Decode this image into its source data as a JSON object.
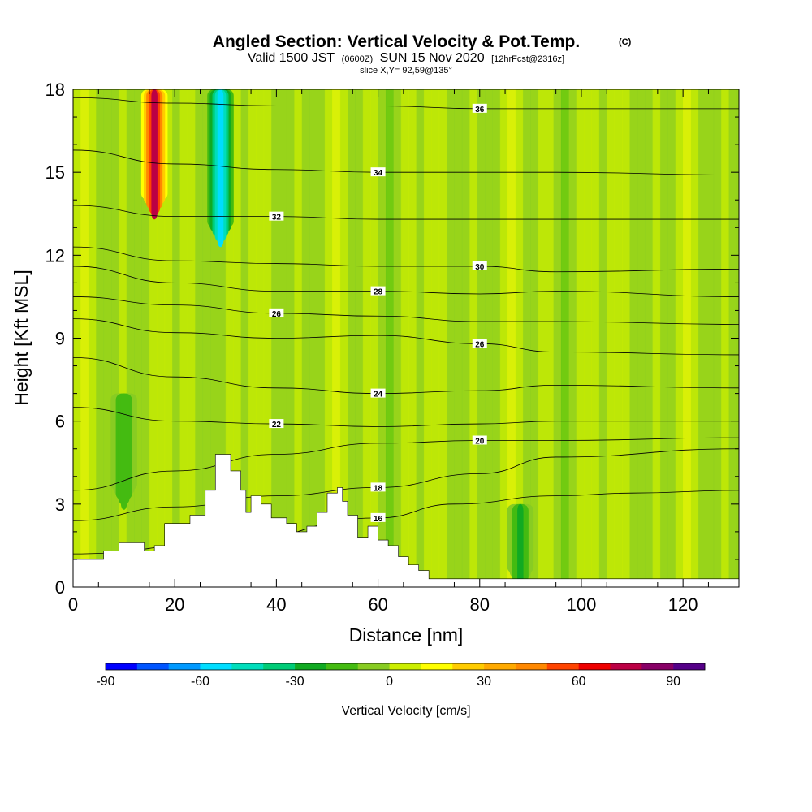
{
  "chart_data": {
    "type": "heatmap",
    "title": "Angled Section: Vertical Velocity & Pot.Temp.",
    "copyright": "(C)",
    "subtitle_main": "Valid 1500 JST",
    "subtitle_utc": "(0600Z)",
    "subtitle_date": "SUN 15 Nov 2020",
    "subtitle_fcst": "[12hrFcst@2316z]",
    "slice_label": "slice X,Y= 92,59@135°",
    "xlabel": "Distance [nm]",
    "ylabel": "Height [Kft MSL]",
    "xlim": [
      0,
      131
    ],
    "ylim": [
      0,
      18
    ],
    "x_ticks": [
      "0",
      "20",
      "40",
      "60",
      "80",
      "100",
      "120"
    ],
    "y_ticks": [
      "0",
      "3",
      "6",
      "9",
      "12",
      "15",
      "18"
    ],
    "colorbar": {
      "label": "Vertical Velocity [cm/s]",
      "min": -90,
      "step": 10,
      "tick_labels": [
        "-90",
        "-60",
        "-30",
        "0",
        "30",
        "60",
        "90"
      ],
      "colors": [
        "#0000ff",
        "#0055ff",
        "#0099ff",
        "#00ddff",
        "#00ddbb",
        "#00cc77",
        "#11aa22",
        "#44bb11",
        "#88cc22",
        "#ccee00",
        "#ffff00",
        "#ffcc00",
        "#ffaa00",
        "#ff8800",
        "#ff4400",
        "#ee0000",
        "#bb0044",
        "#880066",
        "#550088"
      ]
    },
    "updrafts_downdrafts": [
      {
        "x": 16,
        "y_top": 18,
        "y_bottom": 14,
        "value": 70
      },
      {
        "x": 29,
        "y_top": 18,
        "y_bottom": 13,
        "value": -60
      },
      {
        "x": 10,
        "y_top": 7,
        "y_bottom": 3.5,
        "value": -20
      },
      {
        "x": 88,
        "y_top": 3,
        "y_bottom": 0.5,
        "value": -25
      }
    ],
    "theta_contours": [
      {
        "label": "16",
        "values": [
          [
            0,
            1.2
          ],
          [
            30,
            1.6
          ],
          [
            60,
            2.5
          ],
          [
            75,
            3.0
          ],
          [
            95,
            3.3
          ],
          [
            110,
            3.4
          ],
          [
            131,
            3.5
          ]
        ]
      },
      {
        "label": "18",
        "values": [
          [
            0,
            2.4
          ],
          [
            20,
            2.9
          ],
          [
            40,
            3.3
          ],
          [
            60,
            3.6
          ],
          [
            80,
            4.1
          ],
          [
            95,
            4.7
          ],
          [
            131,
            5.0
          ]
        ]
      },
      {
        "label": "20",
        "values": [
          [
            0,
            3.5
          ],
          [
            20,
            4.2
          ],
          [
            40,
            4.8
          ],
          [
            60,
            5.2
          ],
          [
            80,
            5.3
          ],
          [
            95,
            5.3
          ],
          [
            131,
            5.4
          ]
        ]
      },
      {
        "label": "22",
        "values": [
          [
            0,
            6.5
          ],
          [
            20,
            6.0
          ],
          [
            40,
            5.9
          ],
          [
            60,
            5.8
          ],
          [
            80,
            5.9
          ],
          [
            95,
            6.0
          ],
          [
            131,
            6.0
          ]
        ]
      },
      {
        "label": "24",
        "values": [
          [
            0,
            8.3
          ],
          [
            20,
            7.6
          ],
          [
            40,
            7.2
          ],
          [
            60,
            7.0
          ],
          [
            80,
            7.1
          ],
          [
            95,
            7.3
          ],
          [
            131,
            7.2
          ]
        ]
      },
      {
        "label": "26",
        "values": [
          [
            0,
            9.7
          ],
          [
            20,
            9.2
          ],
          [
            40,
            9.0
          ],
          [
            60,
            9.1
          ],
          [
            80,
            8.8
          ],
          [
            95,
            8.5
          ],
          [
            131,
            8.4
          ]
        ]
      },
      {
        "label": "26",
        "values": [
          [
            0,
            10.5
          ],
          [
            20,
            10.2
          ],
          [
            40,
            9.9
          ],
          [
            60,
            9.8
          ],
          [
            80,
            9.6
          ],
          [
            95,
            9.6
          ],
          [
            131,
            9.5
          ]
        ]
      },
      {
        "label": "28",
        "values": [
          [
            0,
            11.6
          ],
          [
            20,
            11.0
          ],
          [
            40,
            10.7
          ],
          [
            60,
            10.7
          ],
          [
            80,
            10.6
          ],
          [
            95,
            10.7
          ],
          [
            131,
            10.5
          ]
        ]
      },
      {
        "label": "30",
        "values": [
          [
            0,
            12.3
          ],
          [
            20,
            11.8
          ],
          [
            40,
            11.7
          ],
          [
            60,
            11.6
          ],
          [
            80,
            11.6
          ],
          [
            95,
            11.4
          ],
          [
            131,
            11.5
          ]
        ]
      },
      {
        "label": "32",
        "values": [
          [
            0,
            13.8
          ],
          [
            20,
            13.4
          ],
          [
            40,
            13.4
          ],
          [
            60,
            13.3
          ],
          [
            80,
            13.3
          ],
          [
            95,
            13.3
          ],
          [
            131,
            13.3
          ]
        ]
      },
      {
        "label": "34",
        "values": [
          [
            0,
            15.8
          ],
          [
            20,
            15.3
          ],
          [
            40,
            15.1
          ],
          [
            60,
            15.0
          ],
          [
            80,
            15.0
          ],
          [
            95,
            15.0
          ],
          [
            131,
            14.9
          ]
        ]
      },
      {
        "label": "36",
        "values": [
          [
            0,
            17.7
          ],
          [
            20,
            17.5
          ],
          [
            40,
            17.4
          ],
          [
            60,
            17.4
          ],
          [
            80,
            17.3
          ],
          [
            95,
            17.3
          ],
          [
            131,
            17.3
          ]
        ]
      }
    ],
    "terrain": [
      [
        0,
        1.0
      ],
      [
        5,
        1.0
      ],
      [
        6,
        1.3
      ],
      [
        9,
        1.6
      ],
      [
        13,
        1.6
      ],
      [
        14,
        1.3
      ],
      [
        16,
        1.5
      ],
      [
        18,
        2.3
      ],
      [
        21,
        2.3
      ],
      [
        23,
        2.6
      ],
      [
        25,
        2.6
      ],
      [
        26,
        3.5
      ],
      [
        28,
        4.8
      ],
      [
        30,
        4.8
      ],
      [
        31,
        4.2
      ],
      [
        33,
        3.5
      ],
      [
        34,
        2.7
      ],
      [
        35,
        3.3
      ],
      [
        37,
        3.0
      ],
      [
        39,
        2.5
      ],
      [
        41,
        2.5
      ],
      [
        42,
        2.3
      ],
      [
        44,
        2.0
      ],
      [
        46,
        2.2
      ],
      [
        48,
        2.7
      ],
      [
        50,
        3.4
      ],
      [
        52,
        3.6
      ],
      [
        53,
        3.1
      ],
      [
        54,
        2.6
      ],
      [
        56,
        1.8
      ],
      [
        58,
        2.2
      ],
      [
        59,
        2.2
      ],
      [
        60,
        1.7
      ],
      [
        62,
        1.5
      ],
      [
        64,
        1.1
      ],
      [
        66,
        0.8
      ],
      [
        68,
        0.6
      ],
      [
        70,
        0.3
      ],
      [
        131,
        0.3
      ]
    ]
  }
}
